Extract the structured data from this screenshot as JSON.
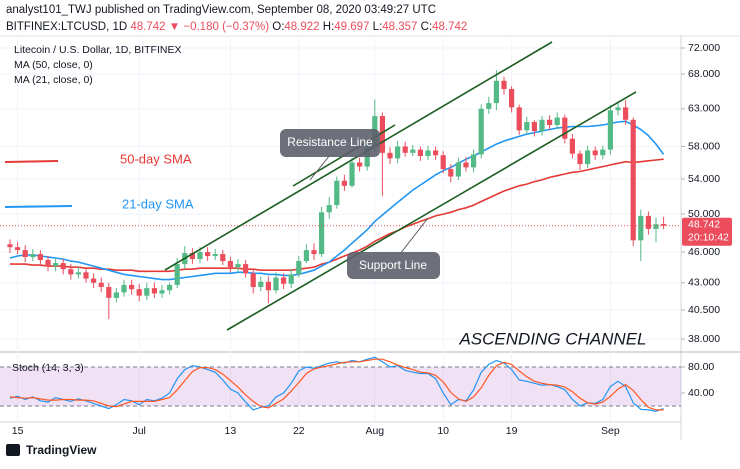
{
  "header": {
    "byline": "analyst101_TWJ published on TradingView.com, September 08, 2020 03:49:27 UTC",
    "symbol": "BITFINEX:LTCUSD, 1D",
    "last": "48.742",
    "change": "▼ −0.180 (−0.37%)",
    "ohlc": [
      {
        "key": "O:",
        "value": "48.922"
      },
      {
        "key": "H:",
        "value": "49.697"
      },
      {
        "key": "L:",
        "value": "48.357"
      },
      {
        "key": "C:",
        "value": "48.742"
      }
    ]
  },
  "countdown": "20:10:42",
  "annotations": {
    "resistance": "Resistance Line",
    "support": "Support Line",
    "channel": "ASCENDING CHANNEL",
    "sma50": "50-day SMA",
    "sma21": "21-day SMA"
  },
  "footer": {
    "brand": "TradingView"
  },
  "chart_data": [
    {
      "type": "candlestick",
      "title": "Litecoin / U.S. Dollar, 1D, BITFINEX",
      "log_scale": true,
      "grid": true,
      "up_color": "#53b987",
      "down_color": "#eb4d5c",
      "categories": [
        null,
        "15",
        null,
        null,
        null,
        null,
        null,
        null,
        null,
        null,
        null,
        null,
        null,
        null,
        null,
        null,
        null,
        "Jul",
        null,
        null,
        null,
        null,
        null,
        null,
        null,
        null,
        null,
        null,
        null,
        "13",
        null,
        null,
        null,
        null,
        null,
        null,
        null,
        null,
        "22",
        null,
        null,
        null,
        null,
        null,
        null,
        null,
        null,
        null,
        "Aug",
        null,
        null,
        null,
        null,
        null,
        null,
        null,
        null,
        "10",
        null,
        null,
        null,
        null,
        null,
        null,
        null,
        null,
        "19",
        null,
        null,
        null,
        null,
        null,
        null,
        null,
        null,
        null,
        null,
        null,
        null,
        "Sep",
        null,
        null,
        null,
        null,
        null,
        null,
        null
      ],
      "open": [
        46.8,
        46.5,
        46.2,
        45.5,
        45.8,
        45.2,
        44.6,
        44.9,
        44.3,
        43.8,
        44.0,
        43.4,
        43.0,
        42.6,
        41.6,
        42.1,
        42.8,
        42.4,
        41.8,
        42.5,
        42.0,
        42.3,
        42.8,
        44.8,
        45.9,
        45.3,
        46.0,
        45.6,
        45.8,
        45.1,
        44.5,
        44.8,
        43.9,
        42.6,
        43.1,
        42.3,
        43.5,
        42.9,
        43.8,
        45.1,
        46.2,
        45.8,
        50.2,
        51.0,
        53.8,
        53.2,
        56.0,
        55.5,
        57.9,
        62.0,
        57.2,
        56.5,
        58.0,
        57.2,
        57.6,
        56.8,
        57.5,
        56.9,
        55.2,
        54.3,
        56.0,
        55.4,
        57.0,
        63.0,
        63.8,
        67.0,
        65.8,
        63.2,
        60.1,
        61.2,
        60.0,
        61.5,
        60.8,
        61.8,
        59.0,
        57.1,
        55.8,
        57.5,
        56.9,
        57.6,
        62.8,
        63.2,
        61.5,
        47.2,
        49.8,
        48.4,
        48.922
      ],
      "high": [
        47.3,
        47.0,
        46.7,
        46.3,
        46.2,
        45.6,
        45.4,
        45.3,
        44.8,
        44.5,
        44.4,
        43.9,
        43.5,
        43.0,
        42.5,
        43.3,
        43.3,
        42.9,
        43.0,
        43.0,
        42.8,
        43.0,
        45.4,
        46.6,
        46.4,
        46.5,
        46.5,
        46.3,
        46.2,
        45.5,
        45.3,
        45.2,
        44.3,
        43.6,
        43.6,
        44.0,
        43.9,
        44.3,
        45.6,
        46.8,
        46.9,
        50.8,
        51.9,
        54.3,
        54.5,
        56.6,
        56.6,
        58.5,
        64.3,
        62.5,
        57.9,
        58.7,
        58.6,
        58.2,
        58.0,
        58.1,
        58.0,
        57.4,
        55.8,
        56.6,
        56.7,
        57.6,
        63.6,
        64.7,
        68.6,
        67.6,
        66.2,
        63.6,
        61.9,
        61.5,
        62.0,
        62.1,
        62.5,
        62.2,
        59.6,
        57.5,
        58.1,
        58.0,
        58.1,
        63.5,
        64.0,
        64.2,
        61.8,
        50.5,
        50.3,
        49.6,
        49.697
      ],
      "low": [
        45.9,
        45.8,
        45.0,
        45.1,
        44.7,
        44.1,
        44.1,
        43.8,
        43.3,
        43.4,
        43.0,
        42.5,
        42.1,
        39.7,
        41.2,
        41.7,
        41.9,
        41.3,
        41.4,
        41.6,
        41.6,
        41.9,
        42.5,
        44.3,
        44.8,
        44.9,
        45.1,
        45.2,
        44.7,
        44.0,
        44.1,
        43.5,
        42.0,
        42.2,
        41.1,
        42.0,
        42.4,
        42.5,
        43.5,
        44.9,
        45.2,
        45.5,
        49.5,
        50.6,
        52.6,
        53.0,
        54.9,
        55.0,
        57.3,
        52.0,
        55.8,
        55.9,
        56.7,
        56.8,
        56.2,
        56.3,
        56.3,
        54.7,
        53.6,
        53.9,
        54.9,
        54.8,
        56.5,
        62.3,
        62.8,
        65.0,
        62.5,
        59.5,
        59.6,
        59.3,
        59.4,
        60.2,
        60.3,
        58.4,
        56.5,
        55.1,
        55.3,
        56.3,
        56.4,
        57.0,
        62.1,
        60.8,
        46.6,
        45.1,
        47.8,
        47.0,
        48.357
      ],
      "close": [
        46.5,
        46.2,
        45.5,
        45.8,
        45.2,
        44.6,
        44.9,
        44.3,
        43.8,
        44.0,
        43.4,
        43.0,
        42.6,
        41.6,
        42.1,
        42.8,
        42.4,
        41.8,
        42.5,
        42.0,
        42.3,
        42.8,
        44.8,
        45.9,
        45.3,
        46.0,
        45.6,
        45.8,
        45.1,
        44.5,
        44.8,
        43.9,
        42.6,
        43.1,
        42.3,
        43.5,
        42.9,
        43.8,
        45.1,
        46.2,
        45.8,
        50.2,
        51.0,
        53.8,
        53.2,
        56.0,
        55.5,
        57.9,
        62.0,
        57.2,
        56.5,
        58.0,
        57.2,
        57.6,
        56.8,
        57.5,
        56.9,
        55.2,
        54.3,
        56.0,
        55.4,
        57.0,
        63.0,
        63.8,
        67.0,
        65.8,
        63.2,
        60.1,
        61.2,
        60.0,
        61.5,
        60.8,
        61.8,
        59.0,
        57.1,
        55.8,
        57.5,
        56.9,
        57.6,
        62.8,
        63.2,
        61.5,
        47.2,
        49.8,
        48.4,
        48.9,
        48.742
      ],
      "series": [
        {
          "name": "MA (50, close, 0)",
          "color": "#e53935",
          "values": [
            44.8,
            44.8,
            44.8,
            44.7,
            44.7,
            44.6,
            44.6,
            44.6,
            44.5,
            44.5,
            44.4,
            44.4,
            44.3,
            44.3,
            44.2,
            44.2,
            44.2,
            44.1,
            44.1,
            44.1,
            44.1,
            44.1,
            44.2,
            44.3,
            44.3,
            44.4,
            44.4,
            44.4,
            44.4,
            44.4,
            44.4,
            44.3,
            44.3,
            44.2,
            44.2,
            44.2,
            44.2,
            44.2,
            44.3,
            44.4,
            44.5,
            44.8,
            45.0,
            45.3,
            45.6,
            45.9,
            46.2,
            46.6,
            47.1,
            47.5,
            47.9,
            48.2,
            48.6,
            48.9,
            49.2,
            49.5,
            49.8,
            50.0,
            50.2,
            50.5,
            50.7,
            51.0,
            51.4,
            51.8,
            52.2,
            52.6,
            52.9,
            53.2,
            53.4,
            53.7,
            53.9,
            54.2,
            54.4,
            54.6,
            54.8,
            54.9,
            55.1,
            55.3,
            55.5,
            55.7,
            55.9,
            56.1,
            56.0,
            56.1,
            56.2,
            56.3,
            56.4
          ]
        },
        {
          "name": "MA (21, close, 0)",
          "color": "#2196f3",
          "values": [
            45.4,
            45.6,
            45.7,
            45.7,
            45.6,
            45.5,
            45.4,
            45.3,
            45.1,
            45.0,
            44.8,
            44.6,
            44.4,
            44.2,
            44.0,
            43.8,
            43.7,
            43.6,
            43.5,
            43.4,
            43.3,
            43.3,
            43.4,
            43.5,
            43.6,
            43.7,
            43.8,
            43.9,
            43.9,
            43.9,
            44.0,
            44.0,
            43.9,
            43.9,
            43.8,
            43.8,
            43.7,
            43.7,
            43.8,
            44.0,
            44.2,
            44.6,
            45.0,
            45.6,
            46.2,
            46.9,
            47.6,
            48.3,
            49.2,
            49.9,
            50.6,
            51.3,
            52.0,
            52.7,
            53.3,
            53.9,
            54.5,
            55.0,
            55.4,
            55.9,
            56.4,
            56.8,
            57.3,
            57.8,
            58.3,
            58.7,
            59.0,
            59.3,
            59.6,
            59.8,
            60.0,
            60.2,
            60.4,
            60.5,
            60.6,
            60.6,
            60.6,
            60.7,
            60.8,
            61.0,
            61.2,
            61.3,
            60.8,
            60.2,
            59.4,
            58.3,
            57.0
          ]
        }
      ],
      "ylim": [
        37.1,
        73.6
      ],
      "yticks": [
        {
          "value": 72,
          "label": "72.000"
        },
        {
          "value": 68,
          "label": "68.000"
        },
        {
          "value": 63,
          "label": "63.000"
        },
        {
          "value": 58,
          "label": "58.000"
        },
        {
          "value": 54,
          "label": "54.000"
        },
        {
          "value": 50,
          "label": "50.000"
        },
        {
          "value": 46,
          "label": "46.000"
        },
        {
          "value": 43,
          "label": "43.000"
        },
        {
          "value": 40.5,
          "label": "40.500"
        },
        {
          "value": 38,
          "label": "38.000"
        }
      ]
    },
    {
      "type": "line",
      "title": "Stoch (14, 3, 3)",
      "band": [
        20,
        80
      ],
      "band_color": "#9c27b0",
      "series": [
        {
          "color": "#2196f3",
          "values": [
            32,
            35,
            30,
            34,
            28,
            26,
            33,
            30,
            27,
            31,
            28,
            24,
            20,
            16,
            22,
            30,
            28,
            22,
            30,
            28,
            32,
            40,
            62,
            76,
            82,
            80,
            76,
            72,
            60,
            46,
            40,
            26,
            14,
            18,
            20,
            34,
            40,
            55,
            74,
            80,
            78,
            82,
            86,
            88,
            86,
            90,
            88,
            92,
            95,
            88,
            80,
            82,
            75,
            72,
            70,
            70,
            62,
            40,
            22,
            30,
            28,
            45,
            72,
            84,
            90,
            86,
            76,
            60,
            58,
            55,
            52,
            53,
            50,
            45,
            30,
            20,
            25,
            24,
            30,
            50,
            58,
            50,
            25,
            15,
            14,
            12,
            16
          ]
        },
        {
          "color": "#ff5722",
          "values": [
            34,
            33,
            32,
            33,
            31,
            29,
            29,
            30,
            30,
            29,
            29,
            28,
            24,
            20,
            19,
            23,
            27,
            27,
            27,
            27,
            30,
            33,
            45,
            59,
            73,
            79,
            79,
            76,
            69,
            59,
            49,
            37,
            27,
            19,
            17,
            24,
            31,
            43,
            56,
            70,
            77,
            80,
            82,
            85,
            87,
            88,
            88,
            90,
            92,
            92,
            88,
            83,
            79,
            76,
            72,
            71,
            67,
            57,
            41,
            31,
            27,
            34,
            48,
            67,
            82,
            87,
            84,
            74,
            65,
            58,
            55,
            53,
            52,
            49,
            42,
            32,
            25,
            23,
            26,
            35,
            46,
            53,
            44,
            30,
            18,
            14,
            14
          ]
        }
      ],
      "ylim": [
        0,
        100
      ],
      "yticks": [
        {
          "value": 80,
          "label": "80.00"
        },
        {
          "value": 40,
          "label": "40.00"
        }
      ]
    }
  ]
}
